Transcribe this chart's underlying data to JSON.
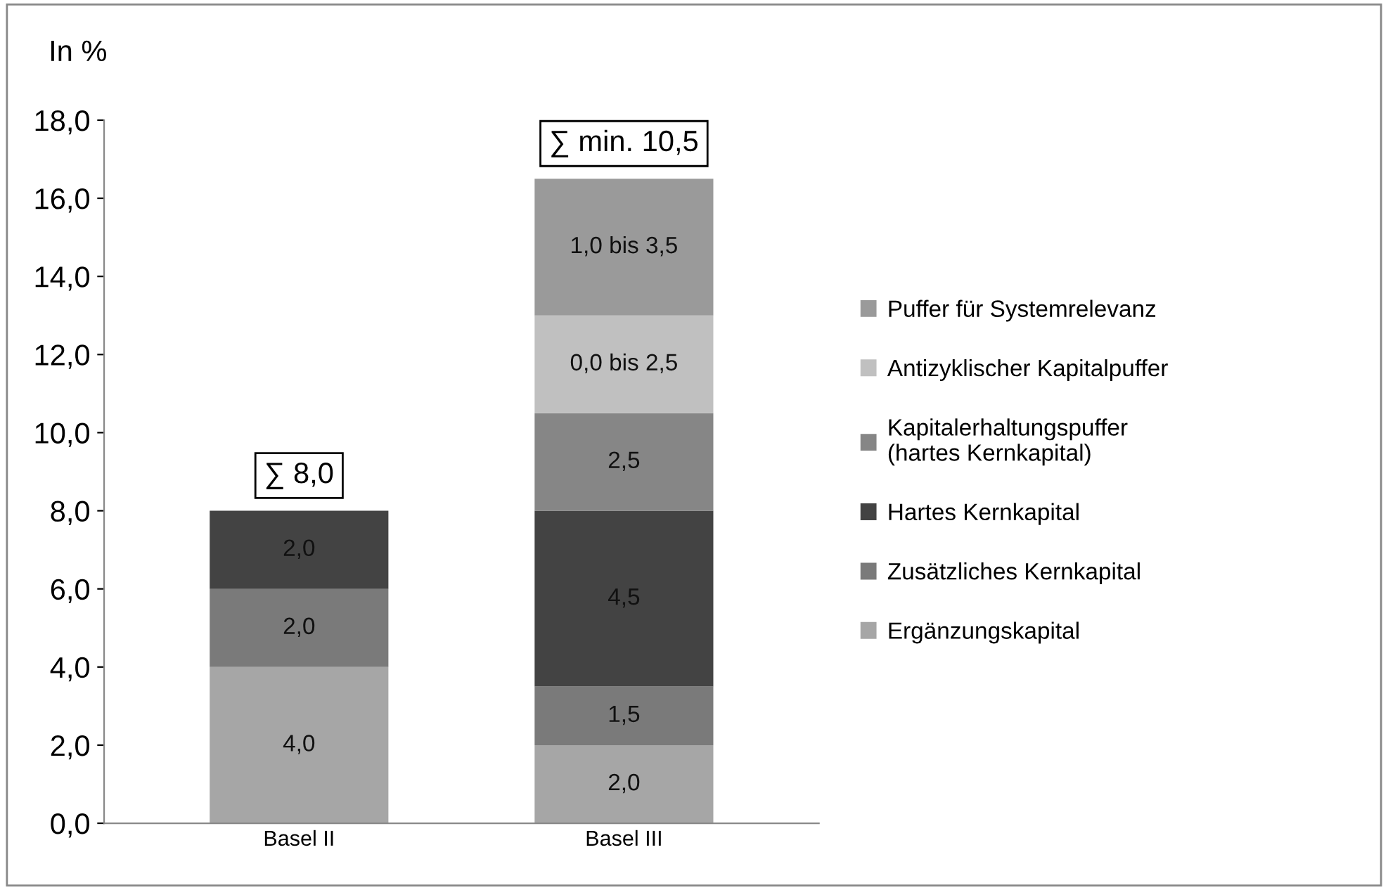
{
  "chart_data": {
    "type": "bar",
    "stacked": true,
    "ylabel": "In %",
    "categories": [
      "Basel II",
      "Basel III"
    ],
    "series": [
      {
        "name": "Ergänzungskapital",
        "color": "#a6a6a6",
        "values": [
          4.0,
          2.0
        ],
        "value_labels": [
          "4,0",
          "2,0"
        ]
      },
      {
        "name": "Zusätzliches Kernkapital",
        "color": "#7a7a7a",
        "values": [
          2.0,
          1.5
        ],
        "value_labels": [
          "2,0",
          "1,5"
        ]
      },
      {
        "name": "Hartes Kernkapital",
        "color": "#434343",
        "values": [
          2.0,
          4.5
        ],
        "value_labels": [
          "2,0",
          "4,5"
        ]
      },
      {
        "name": "Kapitalerhaltungspuffer\n(hartes Kernkapital)",
        "color": "#868686",
        "values": [
          null,
          2.5
        ],
        "value_labels": [
          null,
          "2,5"
        ]
      },
      {
        "name": "Antizyklischer Kapitalpuffer",
        "color": "#c0c0c0",
        "values": [
          null,
          2.5
        ],
        "value_labels": [
          null,
          "0,0 bis 2,5"
        ]
      },
      {
        "name": "Puffer für Systemrelevanz",
        "color": "#9a9a9a",
        "values": [
          null,
          3.5
        ],
        "value_labels": [
          null,
          "1,0 bis 3,5"
        ]
      }
    ],
    "annotations": [
      {
        "text": "∑ 8,0",
        "x": "Basel II",
        "y": 8.0
      },
      {
        "text": "∑ min. 10,5",
        "x": "Basel III",
        "y": 16.5
      }
    ],
    "ylim": [
      0,
      18
    ],
    "yticks": [
      {
        "value": 0,
        "label": "0,0"
      },
      {
        "value": 2,
        "label": "2,0"
      },
      {
        "value": 4,
        "label": "4,0"
      },
      {
        "value": 6,
        "label": "6,0"
      },
      {
        "value": 8,
        "label": "8,0"
      },
      {
        "value": 10,
        "label": "10,0"
      },
      {
        "value": 12,
        "label": "12,0"
      },
      {
        "value": 14,
        "label": "14,0"
      },
      {
        "value": 16,
        "label": "16,0"
      },
      {
        "value": 18,
        "label": "18,0"
      }
    ],
    "grid": false,
    "legend": "right"
  }
}
